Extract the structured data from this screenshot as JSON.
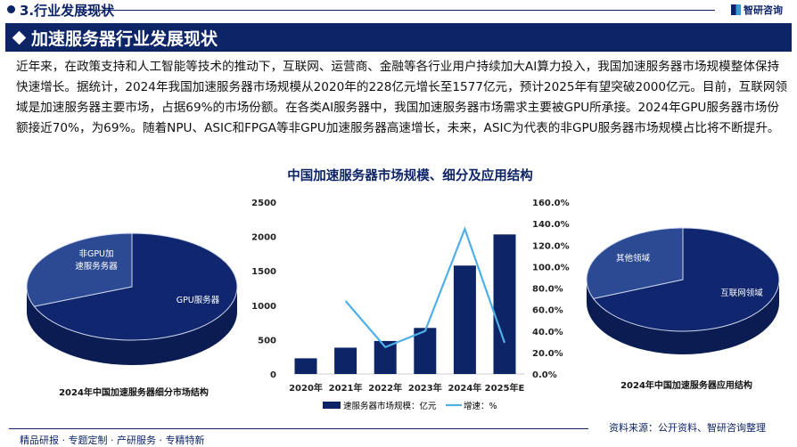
{
  "header": {
    "section": "3.行业发展现状",
    "logo": "智研咨询",
    "banner": "加速服务器行业发展现状"
  },
  "paragraph": "近年来，在政策支持和人工智能等技术的推动下，互联网、运营商、金融等各行业用户持续加大AI算力投入，我国加速服务器市场规模整体保持快速增长。据统计，2024年我国加速服务器市场规模从2020年的228亿元增长至1577亿元，预计2025年有望突破2000亿元。目前，互联网领域是加速服务器主要市场，占据69%的市场份额。在各类AI服务器中，我国加速服务器市场需求主要被GPU所承接。2024年GPU服务器市场份额接近70%，为69%。随着NPU、ASIC和FPGA等非GPU加速服务器高速增长，未来，ASIC为代表的非GPU服务器市场规模占比将不断提升。",
  "chart_data": [
    {
      "type": "bar+line",
      "title": "中国加速服务器市场规模、细分及应用结构",
      "categories": [
        "2020年",
        "2021年",
        "2022年",
        "2023年",
        "2024年",
        "2025年E"
      ],
      "series": [
        {
          "name": "速服务器市场规模：亿元",
          "type": "bar",
          "axis": "left",
          "values": [
            228,
            383,
            480,
            670,
            1577,
            2030
          ]
        },
        {
          "name": "增速：%",
          "type": "line",
          "axis": "right",
          "values": [
            null,
            68,
            25,
            40,
            135,
            29
          ]
        }
      ],
      "y_left": {
        "ylim": [
          0,
          2500
        ],
        "ticks": [
          "0",
          "500",
          "1000",
          "1500",
          "2000",
          "2500"
        ]
      },
      "y_right": {
        "ylim": [
          0,
          160
        ],
        "ticks": [
          "0.0%",
          "20.0%",
          "40.0%",
          "60.0%",
          "80.0%",
          "100.0%",
          "120.0%",
          "140.0%",
          "160.0%"
        ]
      },
      "legend": "bottom",
      "colors": {
        "bar": "#0d2466",
        "line": "#4fb0e8"
      }
    },
    {
      "type": "pie",
      "title": "2024年中国加速服务器细分市场结构",
      "slices": [
        {
          "label": "GPU服务器",
          "value": 69
        },
        {
          "label": "非GPU加速服务务器",
          "value": 31
        }
      ],
      "colors": [
        "#10266e",
        "#2c4a94"
      ]
    },
    {
      "type": "pie",
      "title": "2024年中国加速服务器应用结构",
      "slices": [
        {
          "label": "互联网领域",
          "value": 69
        },
        {
          "label": "其他领域",
          "value": 31
        }
      ],
      "colors": [
        "#10266e",
        "#2c4a94"
      ]
    }
  ],
  "footer": {
    "tagline": "精品研报 · 专题定制 · 产研服务 · 专精特新",
    "source": "资料来源：公开资料、智研咨询整理"
  }
}
